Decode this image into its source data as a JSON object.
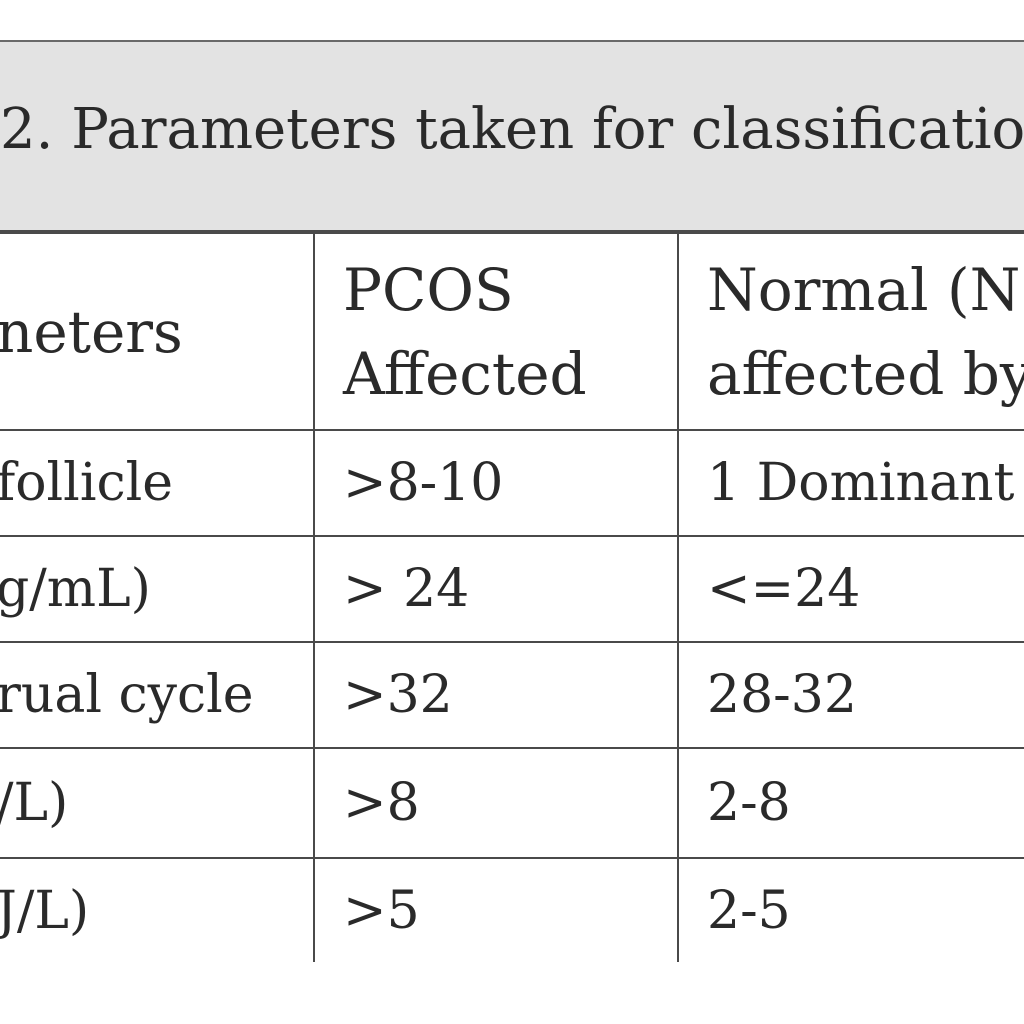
{
  "caption": {
    "text": "2. Parameters taken for classificatio"
  },
  "table": {
    "header": {
      "col1": "neters",
      "col2_line1": "PCOS",
      "col2_line2": "Affected",
      "col3_line1": "Normal (N",
      "col3_line2": "affected by"
    },
    "rows": [
      {
        "param": " follicle",
        "pcos": ">8-10",
        "normal": "1 Dominant"
      },
      {
        "param": "g/mL)",
        "pcos": "> 24",
        "normal": "<=24"
      },
      {
        "param": "rual cycle",
        "pcos": ">32",
        "normal": "28-32"
      },
      {
        "param": "/L)",
        "pcos": ">8",
        "normal": "2-8"
      },
      {
        "param": "J/L)",
        "pcos": ">5",
        "normal": "2-5"
      }
    ]
  }
}
